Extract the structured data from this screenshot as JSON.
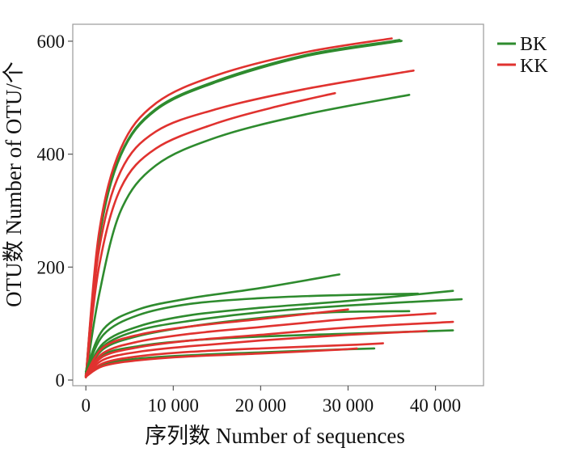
{
  "chart_data": {
    "type": "line",
    "title": "",
    "xlabel": "序列数  Number of sequences",
    "ylabel": "OTU数  Number of OTU/个",
    "xlim": [
      -1500,
      45500
    ],
    "ylim": [
      -10,
      630
    ],
    "xticks": [
      {
        "value": 0,
        "label": "0"
      },
      {
        "value": 10000,
        "label": "10 000"
      },
      {
        "value": 20000,
        "label": "20 000"
      },
      {
        "value": 30000,
        "label": "30 000"
      },
      {
        "value": 40000,
        "label": "40 000"
      }
    ],
    "yticks": [
      {
        "value": 0,
        "label": "0"
      },
      {
        "value": 200,
        "label": "200"
      },
      {
        "value": 400,
        "label": "400"
      },
      {
        "value": 600,
        "label": "600"
      }
    ],
    "grid": false,
    "legend": {
      "position": "top-right",
      "entries": [
        {
          "label": "BK",
          "color": "#2e8b2e"
        },
        {
          "label": "KK",
          "color": "#e0322f"
        }
      ]
    },
    "series": [
      {
        "group": "BK",
        "color": "#2e8b2e",
        "values": [
          [
            0,
            5
          ],
          [
            1500,
            250
          ],
          [
            4000,
            400
          ],
          [
            8000,
            480
          ],
          [
            15000,
            530
          ],
          [
            25000,
            575
          ],
          [
            35000,
            600
          ],
          [
            35500,
            601
          ]
        ]
      },
      {
        "group": "BK",
        "color": "#2e8b2e",
        "values": [
          [
            0,
            5
          ],
          [
            1500,
            248
          ],
          [
            4000,
            398
          ],
          [
            8000,
            478
          ],
          [
            15000,
            528
          ],
          [
            25000,
            573
          ],
          [
            35000,
            598
          ],
          [
            36000,
            600
          ]
        ]
      },
      {
        "group": "BK",
        "color": "#2e8b2e",
        "values": [
          [
            0,
            5
          ],
          [
            1500,
            150
          ],
          [
            4000,
            300
          ],
          [
            8000,
            380
          ],
          [
            15000,
            430
          ],
          [
            25000,
            470
          ],
          [
            37000,
            505
          ]
        ]
      },
      {
        "group": "KK",
        "color": "#e0322f",
        "values": [
          [
            0,
            5
          ],
          [
            1500,
            260
          ],
          [
            4000,
            410
          ],
          [
            8000,
            490
          ],
          [
            15000,
            540
          ],
          [
            25000,
            580
          ],
          [
            35000,
            605
          ]
        ]
      },
      {
        "group": "KK",
        "color": "#e0322f",
        "values": [
          [
            0,
            5
          ],
          [
            1500,
            230
          ],
          [
            4000,
            370
          ],
          [
            8000,
            440
          ],
          [
            15000,
            480
          ],
          [
            25000,
            515
          ],
          [
            37500,
            548
          ]
        ]
      },
      {
        "group": "KK",
        "color": "#e0322f",
        "values": [
          [
            0,
            5
          ],
          [
            1500,
            200
          ],
          [
            4000,
            340
          ],
          [
            8000,
            410
          ],
          [
            15000,
            455
          ],
          [
            22000,
            485
          ],
          [
            28500,
            508
          ]
        ]
      },
      {
        "group": "BK",
        "color": "#2e8b2e",
        "values": [
          [
            0,
            15
          ],
          [
            2000,
            90
          ],
          [
            6000,
            125
          ],
          [
            12000,
            145
          ],
          [
            20000,
            163
          ],
          [
            29000,
            187
          ]
        ]
      },
      {
        "group": "BK",
        "color": "#2e8b2e",
        "values": [
          [
            0,
            12
          ],
          [
            2000,
            80
          ],
          [
            6000,
            115
          ],
          [
            12000,
            135
          ],
          [
            20000,
            145
          ],
          [
            28000,
            150
          ],
          [
            38000,
            153
          ]
        ]
      },
      {
        "group": "BK",
        "color": "#2e8b2e",
        "values": [
          [
            0,
            10
          ],
          [
            2000,
            65
          ],
          [
            6000,
            95
          ],
          [
            12000,
            115
          ],
          [
            20000,
            128
          ],
          [
            30000,
            140
          ],
          [
            42000,
            158
          ]
        ]
      },
      {
        "group": "BK",
        "color": "#2e8b2e",
        "values": [
          [
            0,
            10
          ],
          [
            2000,
            60
          ],
          [
            6000,
            88
          ],
          [
            12000,
            105
          ],
          [
            20000,
            120
          ],
          [
            30000,
            132
          ],
          [
            43000,
            143
          ]
        ]
      },
      {
        "group": "BK",
        "color": "#2e8b2e",
        "values": [
          [
            0,
            10
          ],
          [
            2000,
            55
          ],
          [
            6000,
            78
          ],
          [
            12000,
            95
          ],
          [
            20000,
            110
          ],
          [
            28000,
            120
          ],
          [
            37000,
            122
          ]
        ]
      },
      {
        "group": "BK",
        "color": "#2e8b2e",
        "values": [
          [
            0,
            8
          ],
          [
            2000,
            45
          ],
          [
            6000,
            60
          ],
          [
            12000,
            70
          ],
          [
            20000,
            77
          ],
          [
            30000,
            82
          ],
          [
            42000,
            88
          ]
        ]
      },
      {
        "group": "BK",
        "color": "#2e8b2e",
        "values": [
          [
            0,
            7
          ],
          [
            2000,
            28
          ],
          [
            6000,
            38
          ],
          [
            12000,
            44
          ],
          [
            20000,
            49
          ],
          [
            27000,
            53
          ],
          [
            33000,
            56
          ]
        ]
      },
      {
        "group": "KK",
        "color": "#e0322f",
        "values": [
          [
            0,
            10
          ],
          [
            2000,
            58
          ],
          [
            6000,
            80
          ],
          [
            12000,
            95
          ],
          [
            20000,
            108
          ],
          [
            30000,
            125
          ]
        ]
      },
      {
        "group": "KK",
        "color": "#e0322f",
        "values": [
          [
            0,
            8
          ],
          [
            2000,
            48
          ],
          [
            6000,
            68
          ],
          [
            12000,
            82
          ],
          [
            20000,
            94
          ],
          [
            30000,
            108
          ],
          [
            40000,
            118
          ]
        ]
      },
      {
        "group": "KK",
        "color": "#e0322f",
        "values": [
          [
            0,
            8
          ],
          [
            2000,
            42
          ],
          [
            6000,
            58
          ],
          [
            12000,
            70
          ],
          [
            20000,
            80
          ],
          [
            30000,
            93
          ],
          [
            42000,
            103
          ]
        ]
      },
      {
        "group": "KK",
        "color": "#e0322f",
        "values": [
          [
            0,
            7
          ],
          [
            2000,
            36
          ],
          [
            6000,
            50
          ],
          [
            12000,
            60
          ],
          [
            20000,
            70
          ],
          [
            30000,
            80
          ],
          [
            39000,
            87
          ]
        ]
      },
      {
        "group": "KK",
        "color": "#e0322f",
        "values": [
          [
            0,
            6
          ],
          [
            2000,
            30
          ],
          [
            6000,
            42
          ],
          [
            12000,
            50
          ],
          [
            20000,
            56
          ],
          [
            30000,
            62
          ],
          [
            34000,
            65
          ]
        ]
      },
      {
        "group": "KK",
        "color": "#e0322f",
        "values": [
          [
            0,
            6
          ],
          [
            2000,
            25
          ],
          [
            6000,
            35
          ],
          [
            12000,
            42
          ],
          [
            20000,
            47
          ],
          [
            28000,
            53
          ],
          [
            31000,
            56
          ]
        ]
      }
    ]
  }
}
